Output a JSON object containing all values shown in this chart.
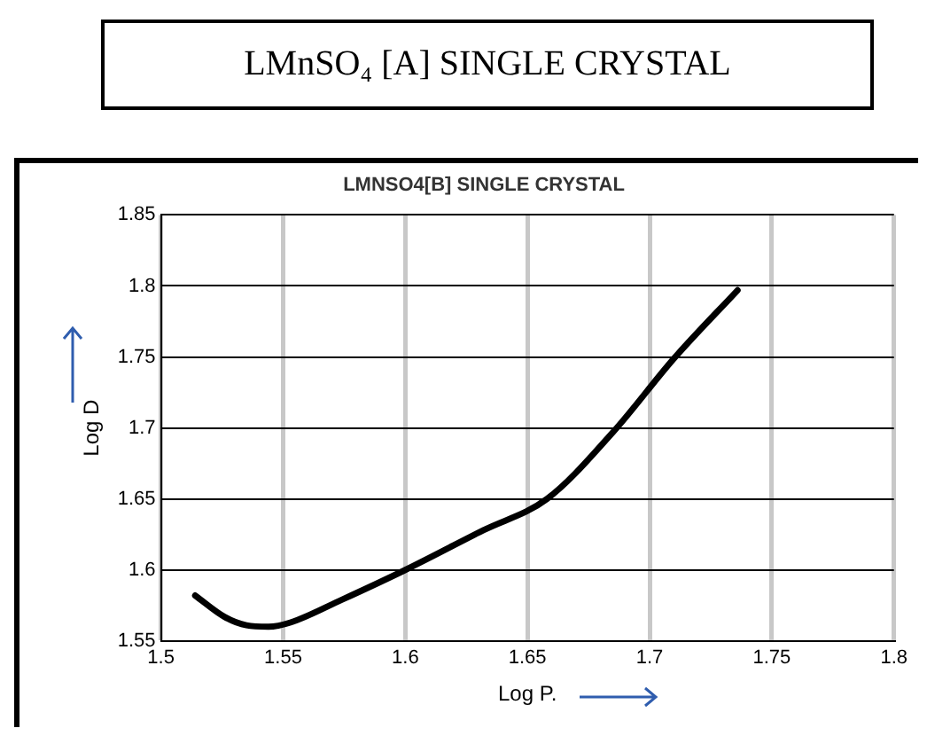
{
  "chart_data": {
    "type": "line",
    "title": "LMnSO₄ [A] SINGLE  CRYSTAL",
    "subtitle": "LMNSO4[B] SINGLE CRYSTAL",
    "xlabel": "Log P.",
    "ylabel": "Log D",
    "x": [
      1.514,
      1.526,
      1.535,
      1.544,
      1.553,
      1.574,
      1.6,
      1.632,
      1.658,
      1.685,
      1.71,
      1.736
    ],
    "series": [
      {
        "color": "#000000",
        "values": [
          1.582,
          1.567,
          1.561,
          1.56,
          1.563,
          1.579,
          1.6,
          1.628,
          1.65,
          1.697,
          1.749,
          1.797
        ]
      }
    ],
    "xlim": [
      1.5,
      1.8
    ],
    "xticks": [
      1.5,
      1.55,
      1.6,
      1.65,
      1.7,
      1.75,
      1.8
    ],
    "ylim": [
      1.55,
      1.85
    ],
    "yticks": [
      1.55,
      1.6,
      1.65,
      1.7,
      1.75,
      1.8,
      1.85
    ],
    "grid": true,
    "legend": false,
    "marker": "none",
    "line_style": "solid"
  }
}
